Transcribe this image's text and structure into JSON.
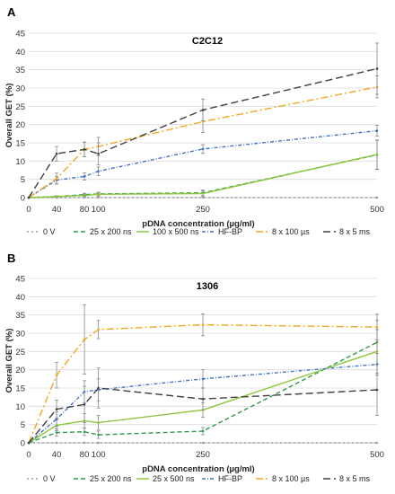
{
  "chart_data": [
    {
      "type": "line",
      "panel": "A",
      "title": "C2C12",
      "xlabel": "pDNA concentration (µg/ml)",
      "ylabel": "Overall GET (%)",
      "x": [
        0,
        40,
        80,
        100,
        250,
        500
      ],
      "x_tick_labels": [
        "0",
        "40",
        "80",
        "100",
        "250",
        "500"
      ],
      "xlim": [
        0,
        500
      ],
      "ylim": [
        0,
        45
      ],
      "y_ticks": [
        0,
        5,
        10,
        15,
        20,
        25,
        30,
        35,
        40,
        45
      ],
      "grid": true,
      "legend_position": "bottom",
      "series": [
        {
          "name": "0 V",
          "color": "#9e9e9e",
          "dash": "2,3",
          "values": [
            0,
            0,
            0,
            0,
            0,
            0
          ],
          "errors": [
            0,
            0,
            0,
            0,
            0,
            0
          ]
        },
        {
          "name": "25 x 200 ns",
          "color": "#2e9a4a",
          "dash": "5,3",
          "values": [
            0,
            0.3,
            0.8,
            1.0,
            1.3,
            11.7
          ],
          "errors": [
            0,
            0.2,
            0.4,
            0.5,
            0.8,
            4
          ]
        },
        {
          "name": "100 x 500 ns",
          "color": "#8cc63f",
          "dash": "",
          "values": [
            0,
            0.3,
            0.6,
            0.9,
            1.1,
            11.8
          ],
          "errors": [
            0,
            0.2,
            0.3,
            0.5,
            0.7,
            4
          ]
        },
        {
          "name": "HF-BP",
          "color": "#4472c4",
          "dash": "4,2,1,2",
          "values": [
            0,
            4.8,
            5.8,
            7.2,
            13.3,
            18.3
          ],
          "errors": [
            0,
            1,
            1,
            1.2,
            1.2,
            1.5
          ]
        },
        {
          "name": "8 x 100 µs",
          "color": "#f5a623",
          "dash": "8,3,2,3",
          "values": [
            0,
            5.2,
            13.2,
            14.0,
            20.8,
            30.3
          ],
          "errors": [
            0,
            1.5,
            2,
            2.5,
            3,
            3
          ]
        },
        {
          "name": "8 x 5 ms",
          "color": "#404040",
          "dash": "8,4",
          "values": [
            0,
            12.0,
            13.2,
            12.0,
            24.0,
            35.3
          ],
          "errors": [
            0,
            2,
            2,
            3,
            3,
            7
          ]
        }
      ]
    },
    {
      "type": "line",
      "panel": "B",
      "title": "1306",
      "xlabel": "pDNA concentration (µg/ml)",
      "ylabel": "Overall GET (%)",
      "x": [
        0,
        40,
        80,
        100,
        250,
        500
      ],
      "x_tick_labels": [
        "0",
        "40",
        "80",
        "100",
        "250",
        "500"
      ],
      "xlim": [
        0,
        500
      ],
      "ylim": [
        0,
        45
      ],
      "y_ticks": [
        0,
        5,
        10,
        15,
        20,
        25,
        30,
        35,
        40,
        45
      ],
      "grid": true,
      "legend_position": "bottom",
      "series": [
        {
          "name": "0 V",
          "color": "#9e9e9e",
          "dash": "2,3",
          "values": [
            0,
            0,
            0,
            0,
            0,
            0
          ],
          "errors": [
            0,
            0,
            0,
            0,
            0,
            0
          ]
        },
        {
          "name": "25 x 200 ns",
          "color": "#2e9a4a",
          "dash": "5,3",
          "values": [
            0,
            2.8,
            3.0,
            2.2,
            3.2,
            27.5
          ],
          "errors": [
            0,
            1,
            1,
            1,
            1,
            6
          ]
        },
        {
          "name": "25 x 500 ns",
          "color": "#8cc63f",
          "dash": "",
          "values": [
            0,
            4.8,
            6.0,
            5.5,
            9.0,
            25.0
          ],
          "errors": [
            0,
            1.5,
            2,
            2,
            2,
            6
          ]
        },
        {
          "name": "HF-BP",
          "color": "#4472c4",
          "dash": "4,2,1,2",
          "values": [
            0,
            6.5,
            14.0,
            14.5,
            17.5,
            21.5
          ],
          "errors": [
            0,
            2,
            3,
            3,
            2.5,
            3
          ]
        },
        {
          "name": "8 x 100 µs",
          "color": "#f5a623",
          "dash": "8,3,2,3",
          "values": [
            0,
            18.5,
            28.3,
            31.0,
            32.3,
            31.7
          ],
          "errors": [
            0,
            3.5,
            9.5,
            2.5,
            3,
            3.5
          ]
        },
        {
          "name": "8 x 5 ms",
          "color": "#404040",
          "dash": "8,4",
          "values": [
            0,
            9.2,
            10.5,
            15.0,
            12.0,
            14.5
          ],
          "errors": [
            0,
            2.5,
            5,
            5.5,
            3,
            7
          ]
        }
      ]
    }
  ]
}
